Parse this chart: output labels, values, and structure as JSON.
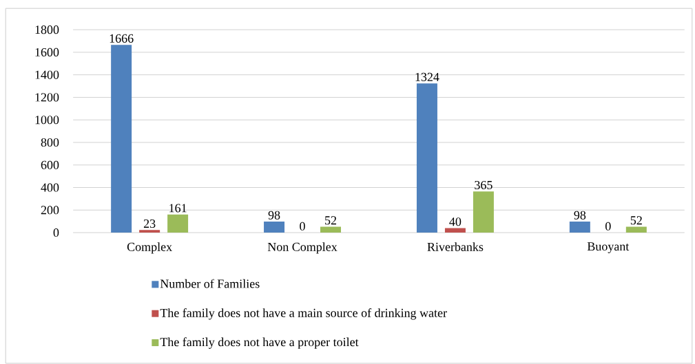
{
  "chart_data": {
    "type": "bar",
    "categories": [
      "Complex",
      "Non Complex",
      "Riverbanks",
      "Buoyant"
    ],
    "series": [
      {
        "name": "Number of Families",
        "color": "#4f81bd",
        "values": [
          1666,
          98,
          1324,
          98
        ]
      },
      {
        "name": "The family does not have a main source of drinking water",
        "color": "#c0504d",
        "values": [
          23,
          0,
          40,
          0
        ]
      },
      {
        "name": "The family does not have a proper toilet",
        "color": "#9bbb59",
        "values": [
          161,
          52,
          365,
          52
        ]
      }
    ],
    "ylim": [
      0,
      1800
    ],
    "yticks": [
      0,
      200,
      400,
      600,
      800,
      1000,
      1200,
      1400,
      1600,
      1800
    ],
    "grid": "y",
    "legend": "bottom",
    "data_labels": true
  }
}
